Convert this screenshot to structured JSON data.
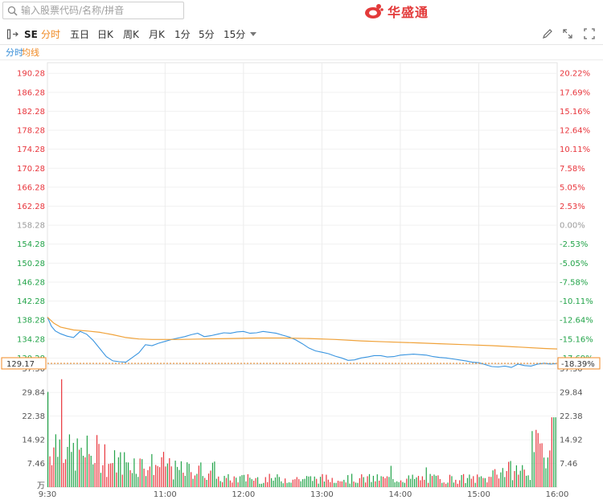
{
  "search": {
    "placeholder": "输入股票代码/名称/拼音"
  },
  "logo": {
    "name": "华盛通"
  },
  "toolbar": {
    "code": "SE",
    "periods": [
      "分时",
      "五日",
      "日K",
      "周K",
      "月K",
      "1分",
      "5分",
      "15分"
    ],
    "active_period": "分时"
  },
  "subtabs": {
    "time": "分时",
    "avg": "均线"
  },
  "colors": {
    "up": "#e8343b",
    "down": "#21a348",
    "neutral": "#9a9a9a",
    "price_line": "#3a95e0",
    "avg_line": "#f0a23a",
    "accent": "#f08a24"
  },
  "chart_data": {
    "type": "line",
    "prev_close": 158.28,
    "y_price_ticks": [
      "190.28",
      "186.28",
      "182.28",
      "178.28",
      "174.28",
      "170.28",
      "166.28",
      "162.28",
      "158.28",
      "154.28",
      "150.28",
      "146.28",
      "142.28",
      "138.28",
      "134.28",
      "130.28"
    ],
    "y_pct_ticks": [
      "20.22%",
      "17.69%",
      "15.16%",
      "12.64%",
      "10.11%",
      "7.58%",
      "5.05%",
      "2.53%",
      "0.00%",
      "-2.53%",
      "-5.05%",
      "-7.58%",
      "-10.11%",
      "-12.64%",
      "-15.16%",
      "-17.69%"
    ],
    "ylim": [
      129.0,
      191.5
    ],
    "current_price": "129.17",
    "current_pct": "-18.39%",
    "x_ticks": [
      "9:30",
      "11:00",
      "12:00",
      "13:00",
      "14:00",
      "15:00",
      "16:00"
    ],
    "series": [
      {
        "x": [
          0,
          3,
          6,
          10,
          15,
          20,
          25,
          30,
          35,
          40,
          45,
          50,
          55,
          60,
          65,
          70,
          75,
          80,
          85,
          90,
          95,
          100,
          105,
          110,
          115,
          120,
          125,
          130,
          135,
          140,
          145,
          150,
          155,
          160,
          165,
          170,
          175,
          180,
          185,
          190,
          195,
          200,
          205,
          210,
          215,
          220,
          225,
          230,
          235,
          240,
          245,
          250,
          255,
          260,
          265,
          270,
          275,
          280,
          285,
          290,
          295,
          300,
          305,
          310,
          315,
          320,
          325,
          330,
          335,
          340,
          345,
          350,
          355,
          360,
          365,
          370,
          375,
          380,
          385,
          390
        ],
        "values": [
          138.9,
          137.0,
          136.0,
          135.4,
          134.9,
          134.6,
          135.9,
          135.3,
          134.0,
          132.3,
          130.6,
          129.7,
          129.5,
          129.4,
          130.4,
          131.4,
          133.1,
          132.9,
          133.4,
          133.8,
          134.2,
          134.5,
          134.8,
          135.2,
          135.5,
          134.8,
          135.0,
          135.3,
          135.6,
          135.5,
          135.8,
          135.9,
          135.5,
          135.6,
          135.9,
          135.7,
          135.5,
          135.1,
          134.7,
          134.1,
          133.3,
          132.4,
          131.8,
          131.5,
          131.2,
          130.7,
          130.3,
          129.8,
          129.9,
          130.3,
          130.5,
          130.8,
          130.8,
          130.5,
          130.6,
          130.9,
          131.0,
          131.1,
          131.0,
          130.9,
          130.6,
          130.4,
          130.3,
          130.1,
          129.9,
          129.7,
          129.4,
          129.3,
          128.9,
          128.5,
          128.4,
          128.6,
          128.3,
          129.0,
          128.7,
          128.6,
          129.0,
          129.2,
          129.0,
          129.17
        ],
        "name": ""
      },
      {
        "x": [
          0,
          5,
          10,
          20,
          30,
          40,
          50,
          60,
          70,
          80,
          90,
          100,
          120,
          140,
          160,
          180,
          200,
          220,
          240,
          260,
          280,
          300,
          320,
          340,
          360,
          380,
          390
        ],
        "values": [
          138.9,
          137.6,
          136.8,
          136.2,
          136.0,
          135.7,
          135.2,
          134.6,
          134.3,
          134.2,
          134.2,
          134.2,
          134.3,
          134.4,
          134.5,
          134.5,
          134.4,
          134.2,
          133.9,
          133.7,
          133.5,
          133.3,
          133.1,
          132.9,
          132.6,
          132.3,
          132.2
        ],
        "name": ""
      }
    ],
    "volume": {
      "y_ticks": [
        "37.30",
        "29.84",
        "22.38",
        "14.92",
        "7.46",
        "万"
      ],
      "ylim": [
        0,
        38.5
      ]
    },
    "grid": true
  }
}
